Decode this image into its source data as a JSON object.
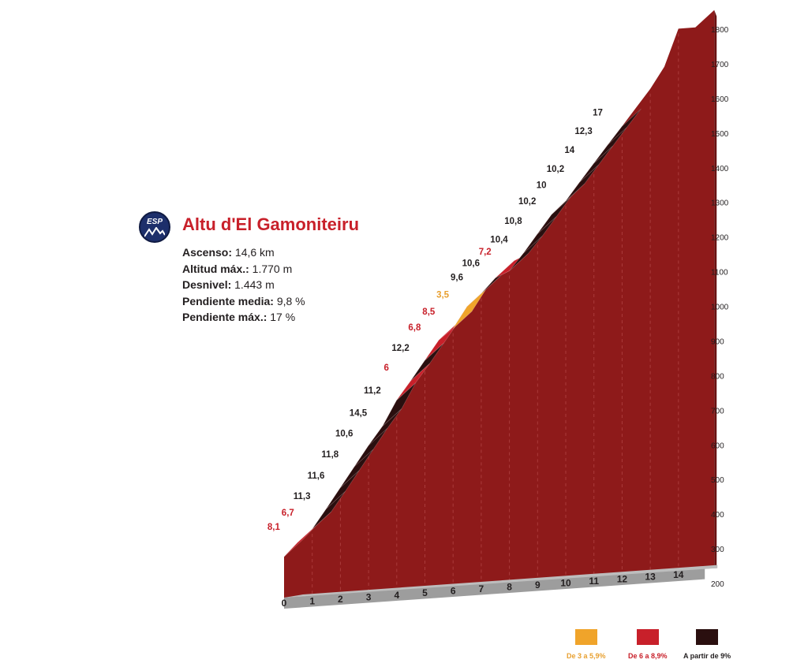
{
  "climb": {
    "badge": "ESP",
    "name": "Altu d'El Gamoniteiru",
    "stats": [
      {
        "label": "Ascenso:",
        "value": "14,6 km"
      },
      {
        "label": "Altitud máx.:",
        "value": "1.770 m"
      },
      {
        "label": "Desnivel:",
        "value": "1.443 m"
      },
      {
        "label": "Pendiente media:",
        "value": "9,8 %"
      },
      {
        "label": "Pendiente máx.:",
        "value": "17 %"
      }
    ]
  },
  "chart_data": {
    "type": "area",
    "title": "Altu d'El Gamoniteiru",
    "x_ticks": [
      "0",
      "1",
      "2",
      "3",
      "4",
      "5",
      "6",
      "7",
      "8",
      "9",
      "10",
      "11",
      "12",
      "13",
      "14"
    ],
    "y_ticks": [
      "200",
      "300",
      "400",
      "500",
      "600",
      "700",
      "800",
      "900",
      "1000",
      "1100",
      "1200",
      "1300",
      "1400",
      "1500",
      "1600",
      "1700",
      "1800"
    ],
    "xlim": [
      0,
      14.6
    ],
    "ylim": [
      200,
      1800
    ],
    "profile_km": [
      0,
      0.5,
      1,
      1.5,
      2,
      2.5,
      3,
      3.5,
      4,
      4.5,
      5,
      5.5,
      6,
      6.5,
      7,
      7.5,
      8,
      8.5,
      9,
      9.5,
      10,
      10.5,
      11,
      11.5,
      12,
      12.5,
      13,
      13.5,
      14,
      14.6
    ],
    "altitude_m": [
      327,
      367,
      401,
      457,
      515,
      573,
      631,
      684,
      756,
      809,
      865,
      921,
      951,
      1012,
      1046,
      1088,
      1106,
      1154,
      1207,
      1260,
      1296,
      1348,
      1399,
      1450,
      1500,
      1551,
      1602,
      1663,
      1770,
      1770
    ],
    "segments": [
      {
        "grade": "8,1",
        "cat": "cat2"
      },
      {
        "grade": "6,7",
        "cat": "cat2"
      },
      {
        "grade": "11,3",
        "cat": "cat3"
      },
      {
        "grade": "11,6",
        "cat": "cat3"
      },
      {
        "grade": "11,8",
        "cat": "cat3"
      },
      {
        "grade": "10,6",
        "cat": "cat3"
      },
      {
        "grade": "14,5",
        "cat": "cat3"
      },
      {
        "grade": "11,2",
        "cat": "cat3"
      },
      {
        "grade": "6",
        "cat": "cat2"
      },
      {
        "grade": "12,2",
        "cat": "cat3"
      },
      {
        "grade": "6,8",
        "cat": "cat2"
      },
      {
        "grade": "8,5",
        "cat": "cat2"
      },
      {
        "grade": "3,5",
        "cat": "cat1"
      },
      {
        "grade": "9,6",
        "cat": "cat3"
      },
      {
        "grade": "10,6",
        "cat": "cat3"
      },
      {
        "grade": "7,2",
        "cat": "cat2"
      },
      {
        "grade": "10,4",
        "cat": "cat3"
      },
      {
        "grade": "10,8",
        "cat": "cat3"
      },
      {
        "grade": "10,2",
        "cat": "cat3"
      },
      {
        "grade": "10",
        "cat": "cat3"
      },
      {
        "grade": "10,2",
        "cat": "cat3"
      },
      {
        "grade": "14",
        "cat": "cat3"
      },
      {
        "grade": "12,3",
        "cat": "cat3"
      },
      {
        "grade": "17",
        "cat": "cat3"
      }
    ],
    "legend": [
      {
        "label": "De 3 a 5,9%",
        "cat": "cat1"
      },
      {
        "label": "De 6 a 8,9%",
        "cat": "cat2"
      },
      {
        "label": "A partir de 9%",
        "cat": "cat3"
      }
    ],
    "colors": {
      "cat1": "#f0a42a",
      "cat2": "#c8202a",
      "cat3": "#2a0f0f",
      "terrain": "#8e1a1a",
      "base": "#9d9d9d"
    }
  }
}
